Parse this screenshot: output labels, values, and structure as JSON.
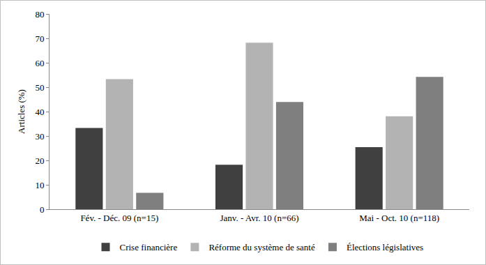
{
  "chart_data": {
    "type": "bar",
    "categories": [
      "Fév. - Déc. 09 (n=15)",
      "Janv. - Avr. 10 (n=66)",
      "Mai - Oct. 10 (n=118)"
    ],
    "series": [
      {
        "name": "Crise financière",
        "color": "#404040",
        "values": [
          33.3,
          18.2,
          25.4
        ]
      },
      {
        "name": "Réforme du système de santé",
        "color": "#b3b3b3",
        "values": [
          53.3,
          68.2,
          38.1
        ]
      },
      {
        "name": "Élections législatives",
        "color": "#7f7f7f",
        "values": [
          6.7,
          43.9,
          54.2
        ]
      }
    ],
    "y_label": "Articles (%)",
    "ylim": [
      0,
      80
    ],
    "yticks": [
      0,
      10,
      20,
      30,
      40,
      50,
      60,
      70,
      80
    ],
    "grid": false,
    "legend": "bottom"
  }
}
